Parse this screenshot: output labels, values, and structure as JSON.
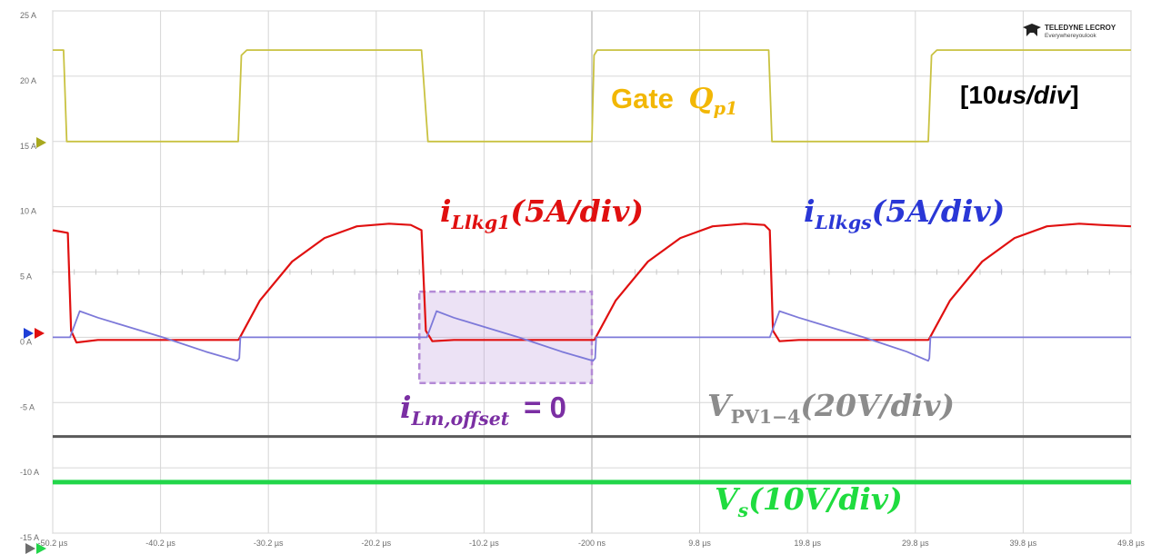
{
  "chart_data": {
    "type": "line",
    "title": "",
    "timebase": "[10us/div]",
    "y_ticks": [
      "25 A",
      "20 A",
      "15 A",
      "10 A",
      "5 A",
      "0 A",
      "-5 A",
      "-10 A",
      "-15 A"
    ],
    "x_ticks": [
      "-50.2 µs",
      "-40.2 µs",
      "-30.2 µs",
      "-20.2 µs",
      "-10.2 µs",
      "-200 ns",
      "9.8 µs",
      "19.8 µs",
      "29.8 µs",
      "39.8 µs",
      "49.8 µs"
    ],
    "xlim_us": [
      -50.2,
      49.8
    ],
    "ylim_A": [
      -15,
      25
    ],
    "grid": true,
    "series": [
      {
        "name": "Gate Q_p1",
        "color": "#c9c241",
        "x": [
          -50.2,
          -49.2,
          -48.9,
          -48.2,
          -33.0,
          -32.7,
          -32.2,
          -16.0,
          -15.4,
          -14.8,
          -0.2,
          0.0,
          0.3,
          16.2,
          16.5,
          17.0,
          31.0,
          31.3,
          31.8,
          49.8
        ],
        "y": [
          22.0,
          22.0,
          15.0,
          15.0,
          15.0,
          21.6,
          22.0,
          22.0,
          15.0,
          15.0,
          15.0,
          21.6,
          22.0,
          22.0,
          15.0,
          15.0,
          15.0,
          21.6,
          22.0,
          22.0
        ]
      },
      {
        "name": "i_Llkg1 (5A/div)",
        "color": "#e01010",
        "x": [
          -50.2,
          -48.8,
          -48.5,
          -48.0,
          -46.0,
          -42.0,
          -38.0,
          -34.0,
          -33.0,
          -32.9,
          -31.0,
          -28.0,
          -25.0,
          -22.0,
          -19.0,
          -17.0,
          -16.0,
          -15.6,
          -15.0,
          -13.0,
          -9.0,
          -5.0,
          -1.0,
          0.0,
          0.1,
          2.0,
          5.0,
          8.0,
          11.0,
          14.0,
          15.8,
          16.3,
          16.6,
          17.2,
          19.0,
          23.0,
          27.0,
          30.0,
          31.0,
          31.1,
          33.0,
          36.0,
          39.0,
          42.0,
          45.0,
          47.0,
          49.8
        ],
        "y": [
          8.2,
          8.0,
          0.5,
          -0.4,
          -0.2,
          -0.2,
          -0.2,
          -0.2,
          -0.2,
          -0.1,
          2.8,
          5.8,
          7.6,
          8.5,
          8.7,
          8.6,
          8.2,
          0.5,
          -0.3,
          -0.2,
          -0.2,
          -0.2,
          -0.2,
          -0.2,
          -0.1,
          2.8,
          5.8,
          7.6,
          8.5,
          8.7,
          8.6,
          8.2,
          0.5,
          -0.3,
          -0.2,
          -0.2,
          -0.2,
          -0.2,
          -0.2,
          -0.1,
          2.8,
          5.8,
          7.6,
          8.5,
          8.7,
          8.6,
          8.5
        ]
      },
      {
        "name": "i_Llkgs (5A/div)",
        "color": "#7d79d9",
        "x": [
          -50.2,
          -48.6,
          -47.7,
          -46.0,
          -44.0,
          -40.0,
          -36.0,
          -33.1,
          -32.9,
          -32.8,
          -15.5,
          -14.6,
          -13.0,
          -11.0,
          -7.0,
          -3.0,
          -0.1,
          0.1,
          0.2,
          16.3,
          17.2,
          19.0,
          21.0,
          25.0,
          29.0,
          31.0,
          31.1,
          31.2,
          49.8
        ],
        "y": [
          0.0,
          0.0,
          2.0,
          1.5,
          1.0,
          0.0,
          -1.1,
          -1.8,
          -1.6,
          0.0,
          0.0,
          2.0,
          1.5,
          1.0,
          0.0,
          -1.1,
          -1.8,
          -1.6,
          0.0,
          0.0,
          2.0,
          1.5,
          1.0,
          0.0,
          -1.1,
          -1.8,
          -1.6,
          0.0,
          0.0
        ]
      },
      {
        "name": "V_PV1-4 (20V/div)",
        "color": "#5a5a5a",
        "x": [
          -50.2,
          49.8
        ],
        "y": [
          -7.6,
          -7.6
        ]
      },
      {
        "name": "V_s (10V/div)",
        "color": "#22d64a",
        "x": [
          -50.2,
          49.8
        ],
        "y": [
          -11.1,
          -11.1
        ]
      }
    ]
  },
  "labels": {
    "brand_name": "TELEDYNE LECROY",
    "brand_tagline": "Everywhereyoulook",
    "gate_word": "Gate",
    "gate_Q": "Q",
    "gate_sub": "p1",
    "timebase_open": "[10",
    "timebase_unit": "us/div",
    "timebase_close": "]",
    "i_letter": "i",
    "ilkg1_sub": "Llkg1",
    "ilkg1_scale": "(5A/div)",
    "ilkgs_sub": "Llkgs",
    "ilkgs_scale": "(5A/div)",
    "ilm_sub": "Lm,offset",
    "ilm_equals": "= 0",
    "vpv_letter": "V",
    "vpv_sub": "PV1−4",
    "vpv_scale": "(20V/div)",
    "vs_letter": "V",
    "vs_sub": "s",
    "vs_scale": "(10V/div)"
  },
  "colors": {
    "gate_label": "#f2b705",
    "ilkg1_label": "#e01010",
    "ilkgs_label": "#2a37d6",
    "ilm_label": "#7b2fa3",
    "vpv_label": "#8c8c8c",
    "vs_label": "#1fdc3f",
    "highlight_box": "#b48ad6"
  },
  "highlight": {
    "name": "i_Lm,offset region",
    "x_us": [
      -16.2,
      -0.2
    ],
    "y_A": [
      -3.5,
      3.5
    ]
  }
}
